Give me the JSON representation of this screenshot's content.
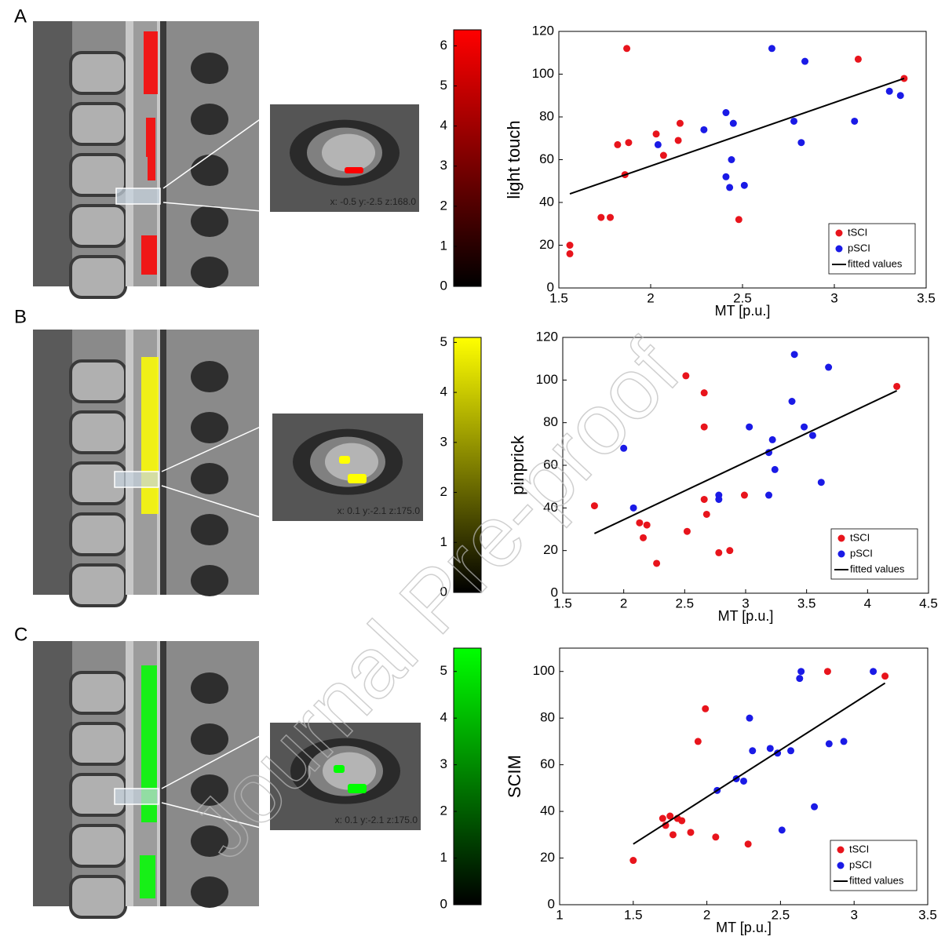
{
  "watermark": "Journal Pre-proof",
  "panels": [
    {
      "label": "A",
      "coords": "x: -0.5 y:-2.5 z:168.0",
      "colorbar": {
        "color": "#ff0000",
        "lim": [
          0,
          6.4
        ],
        "ticks": [
          0,
          1,
          2,
          3,
          4,
          5,
          6
        ]
      }
    },
    {
      "label": "B",
      "coords": "x: 0.1 y:-2.1 z:175.0",
      "colorbar": {
        "color": "#ffff00",
        "lim": [
          0,
          5.1
        ],
        "ticks": [
          0,
          1,
          2,
          3,
          4,
          5
        ]
      }
    },
    {
      "label": "C",
      "coords": "x: 0.1 y:-2.1 z:175.0",
      "colorbar": {
        "color": "#00ff00",
        "lim": [
          0,
          5.5
        ],
        "ticks": [
          0,
          1,
          2,
          3,
          4,
          5
        ]
      }
    }
  ],
  "chart_data": [
    {
      "type": "scatter",
      "x_label": "MT [p.u.]",
      "y_label": "light touch",
      "xlim": [
        1.5,
        3.5
      ],
      "xticks": [
        1.5,
        2,
        2.5,
        3,
        3.5
      ],
      "ylim": [
        0,
        120
      ],
      "yticks": [
        0,
        20,
        40,
        60,
        80,
        100,
        120
      ],
      "legend": "lower right",
      "series": [
        {
          "name": "tSCI",
          "color": "#e8141c",
          "x": [
            1.56,
            1.56,
            1.73,
            1.78,
            1.82,
            1.86,
            1.87,
            1.88,
            2.03,
            2.07,
            2.15,
            2.16,
            2.48,
            3.13,
            3.38
          ],
          "values": [
            20,
            16,
            33,
            33,
            67,
            53,
            112,
            68,
            72,
            62,
            69,
            77,
            32,
            107,
            98
          ]
        },
        {
          "name": "pSCI",
          "color": "#1a1ae6",
          "x": [
            2.04,
            2.29,
            2.41,
            2.41,
            2.43,
            2.44,
            2.45,
            2.51,
            2.66,
            2.78,
            2.82,
            2.84,
            3.11,
            3.3,
            3.36
          ],
          "values": [
            67,
            74,
            82,
            52,
            47,
            60,
            77,
            48,
            112,
            78,
            68,
            106,
            78,
            92,
            90
          ]
        },
        {
          "name": "fitted values",
          "color": "#000000",
          "type": "line",
          "x": [
            1.56,
            3.38
          ],
          "values": [
            44,
            98
          ]
        }
      ]
    },
    {
      "type": "scatter",
      "x_label": "MT [p.u.]",
      "y_label": "pinprick",
      "xlim": [
        1.5,
        4.5
      ],
      "xticks": [
        1.5,
        2,
        2.5,
        3,
        3.5,
        4,
        4.5
      ],
      "ylim": [
        0,
        120
      ],
      "yticks": [
        0,
        20,
        40,
        60,
        80,
        100,
        120
      ],
      "legend": "lower right",
      "series": [
        {
          "name": "tSCI",
          "color": "#e8141c",
          "x": [
            1.76,
            2.13,
            2.16,
            2.19,
            2.27,
            2.51,
            2.52,
            2.66,
            2.66,
            2.66,
            2.68,
            2.78,
            2.87,
            2.99,
            4.24
          ],
          "values": [
            41,
            33,
            26,
            32,
            14,
            102,
            29,
            94,
            78,
            44,
            37,
            19,
            20,
            46,
            97
          ]
        },
        {
          "name": "pSCI",
          "color": "#1a1ae6",
          "x": [
            2.0,
            2.08,
            2.78,
            2.78,
            3.03,
            3.19,
            3.19,
            3.22,
            3.24,
            3.38,
            3.4,
            3.48,
            3.55,
            3.62,
            3.68
          ],
          "values": [
            68,
            40,
            46,
            44,
            78,
            66,
            46,
            72,
            58,
            90,
            112,
            78,
            74,
            52,
            106
          ]
        },
        {
          "name": "fitted values",
          "color": "#000000",
          "type": "line",
          "x": [
            1.76,
            4.24
          ],
          "values": [
            28,
            95
          ]
        }
      ]
    },
    {
      "type": "scatter",
      "x_label": "MT [p.u.]",
      "y_label": "SCIM",
      "xlim": [
        1,
        3.5
      ],
      "xticks": [
        1,
        1.5,
        2,
        2.5,
        3,
        3.5
      ],
      "ylim": [
        0,
        110
      ],
      "yticks": [
        0,
        20,
        40,
        60,
        80,
        100
      ],
      "legend": "lower right",
      "series": [
        {
          "name": "tSCI",
          "color": "#e8141c",
          "x": [
            1.5,
            1.7,
            1.72,
            1.75,
            1.77,
            1.8,
            1.83,
            1.89,
            1.94,
            1.99,
            2.06,
            2.28,
            2.82,
            3.21
          ],
          "values": [
            19,
            37,
            34,
            38,
            30,
            37,
            36,
            31,
            70,
            84,
            29,
            26,
            100,
            98
          ]
        },
        {
          "name": "pSCI",
          "color": "#1a1ae6",
          "x": [
            2.07,
            2.2,
            2.25,
            2.29,
            2.31,
            2.43,
            2.48,
            2.51,
            2.57,
            2.63,
            2.64,
            2.73,
            2.83,
            2.93,
            3.13
          ],
          "values": [
            49,
            54,
            53,
            80,
            66,
            67,
            65,
            32,
            66,
            97,
            100,
            42,
            69,
            70,
            100
          ]
        },
        {
          "name": "fitted values",
          "color": "#000000",
          "type": "line",
          "x": [
            1.5,
            3.21
          ],
          "values": [
            26,
            95
          ]
        }
      ]
    }
  ]
}
